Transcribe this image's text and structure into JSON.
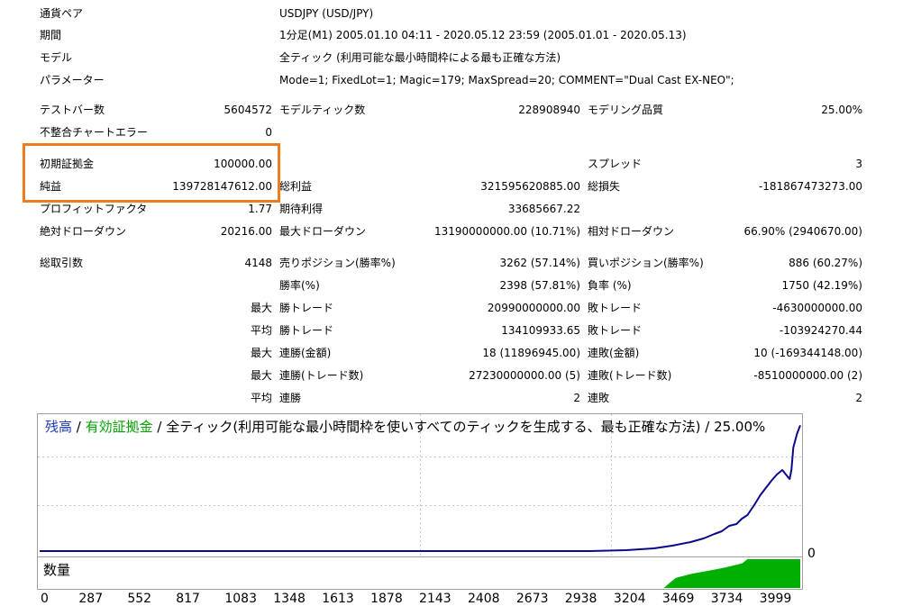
{
  "info": {
    "symbol_label": "通貨ペア",
    "symbol_value": "USDJPY (USD/JPY)",
    "period_label": "期間",
    "period_value": "1分足(M1) 2005.01.10 04:11 - 2020.05.12 23:59 (2005.01.01 - 2020.05.13)",
    "model_label": "モデル",
    "model_value": "全ティック (利用可能な最小時間枠による最も正確な方法)",
    "params_label": "パラメーター",
    "params_value": "Mode=1; FixedLot=1; Magic=179; MaxSpread=20; COMMENT=\"Dual Cast EX-NEO\";"
  },
  "stats": {
    "bars_label": "テストバー数",
    "bars_value": "5604572",
    "ticks_label": "モデルティック数",
    "ticks_value": "228908940",
    "quality_label": "モデリング品質",
    "quality_value": "25.00%",
    "mismatch_label": "不整合チャートエラー",
    "mismatch_value": "0",
    "deposit_label": "初期証拠金",
    "deposit_value": "100000.00",
    "spread_label": "スプレッド",
    "spread_value": "3",
    "net_label": "純益",
    "net_value": "139728147612.00",
    "gross_profit_label": "総利益",
    "gross_profit_value": "321595620885.00",
    "gross_loss_label": "総損失",
    "gross_loss_value": "-181867473273.00",
    "pf_label": "プロフィットファクタ",
    "pf_value": "1.77",
    "payoff_label": "期待利得",
    "payoff_value": "33685667.22",
    "abs_dd_label": "絶対ドローダウン",
    "abs_dd_value": "20216.00",
    "max_dd_label": "最大ドローダウン",
    "max_dd_value": "13190000000.00 (10.71%)",
    "rel_dd_label": "相対ドローダウン",
    "rel_dd_value": "66.90% (2940670.00)",
    "trades_label": "総取引数",
    "trades_value": "4148",
    "short_label": "売りポジション(勝率%)",
    "short_value": "3262 (57.14%)",
    "long_label": "買いポジション(勝率%)",
    "long_value": "886 (60.27%)",
    "win_label": "勝率(%)",
    "win_value": "2398 (57.81%)",
    "loss_label": "負率 (%)",
    "loss_value": "1750 (42.19%)",
    "max_label": "最大",
    "avg_label": "平均",
    "max_win_label": "勝トレード",
    "max_win_value": "20990000000.00",
    "max_loss_label": "敗トレード",
    "max_loss_value": "-4630000000.00",
    "avg_win_label": "勝トレード",
    "avg_win_value": "134109933.65",
    "avg_loss_label": "敗トレード",
    "avg_loss_value": "-103924270.44",
    "max_cons_wins_label": "連勝(金額)",
    "max_cons_wins_value": "18 (11896945.00)",
    "max_cons_losses_label": "連敗(金額)",
    "max_cons_losses_value": "10 (-169344148.00)",
    "max_cons_profit_label": "連勝(トレード数)",
    "max_cons_profit_value": "27230000000.00 (5)",
    "max_cons_loss_label": "連敗(トレード数)",
    "max_cons_loss_value": "-8510000000.00 (2)",
    "avg_cons_wins_label": "連勝",
    "avg_cons_wins_value": "2",
    "avg_cons_losses_label": "連敗",
    "avg_cons_losses_value": "2"
  },
  "chart_legend": {
    "balance": "残高",
    "sep1": " / ",
    "equity": "有効証拠金",
    "rest": " / 全ティック(利用可能な最小時間枠を使いすべてのティックを生成する、最も正確な方法) / 25.00%"
  },
  "volume_label": "数量",
  "colors": {
    "balance": "#0a0a8a",
    "equity": "#00a000",
    "volume": "#00b000",
    "highlight": "#f07c21",
    "legend_balance": "#1e3cb4"
  },
  "chart_data": {
    "type": "line",
    "title": "残高 / 有効証拠金 / 全ティック(利用可能な最小時間枠を使いすべてのティックを生成する、最も正確な方法) / 25.00%",
    "x_ticks": [
      0,
      287,
      552,
      817,
      1083,
      1348,
      1613,
      1878,
      2143,
      2408,
      2673,
      2938,
      3204,
      3469,
      3734,
      3999
    ],
    "y_tick_labels": [
      "0"
    ],
    "xlim": [
      0,
      4148
    ],
    "ylim": [
      0,
      140000000000
    ],
    "series": [
      {
        "name": "残高",
        "x": [
          0,
          3000,
          3200,
          3350,
          3450,
          3550,
          3620,
          3680,
          3720,
          3760,
          3800,
          3830,
          3860,
          3900,
          3930,
          3960,
          3990,
          4020,
          4050,
          4070,
          4090,
          4100,
          4110,
          4130,
          4148
        ],
        "y": [
          0,
          0,
          1000000000,
          3000000000,
          6000000000,
          10000000000,
          14000000000,
          19000000000,
          22000000000,
          28000000000,
          30000000000,
          36000000000,
          40000000000,
          52000000000,
          62000000000,
          70000000000,
          78000000000,
          85000000000,
          90000000000,
          85000000000,
          80000000000,
          90000000000,
          115000000000,
          130000000000,
          139728147612
        ]
      }
    ],
    "volume": {
      "name": "数量",
      "steps": [
        {
          "x": 3404,
          "y": 0
        },
        {
          "x": 3430,
          "y": 0.15
        },
        {
          "x": 3470,
          "y": 0.35
        },
        {
          "x": 3560,
          "y": 0.5
        },
        {
          "x": 3650,
          "y": 0.6
        },
        {
          "x": 3730,
          "y": 0.7
        },
        {
          "x": 3830,
          "y": 0.85
        },
        {
          "x": 3860,
          "y": 1.0
        },
        {
          "x": 4148,
          "y": 1.0
        }
      ]
    }
  }
}
